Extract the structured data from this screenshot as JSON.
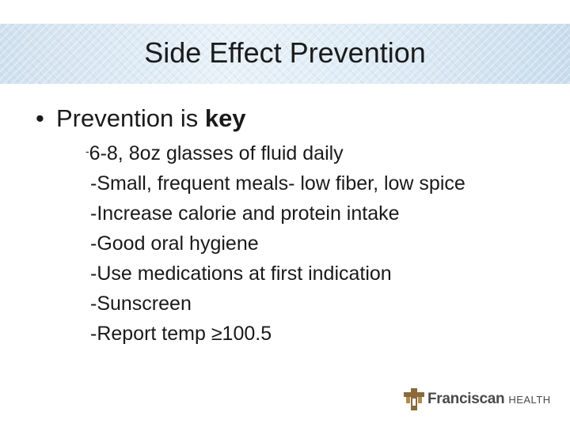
{
  "slide": {
    "title": "Side Effect Prevention",
    "bullet_prefix": "Prevention is ",
    "bullet_bold": "key",
    "first_item_dash": "-",
    "first_item_text": "6-8, 8oz glasses of fluid daily",
    "items": [
      "-Small, frequent meals- low fiber, low spice",
      "-Increase calorie and protein intake",
      "-Good oral hygiene",
      "-Use medications at first indication",
      "-Sunscreen",
      "-Report temp ≥100.5"
    ]
  },
  "logo": {
    "name": "Franciscan",
    "sub": "HEALTH",
    "icon": "franciscan-cross-icon",
    "color": "#8a6a3a"
  },
  "colors": {
    "band_light": "#e8f1f8",
    "band_dark": "#c9dcec",
    "text": "#1a1a1a"
  }
}
